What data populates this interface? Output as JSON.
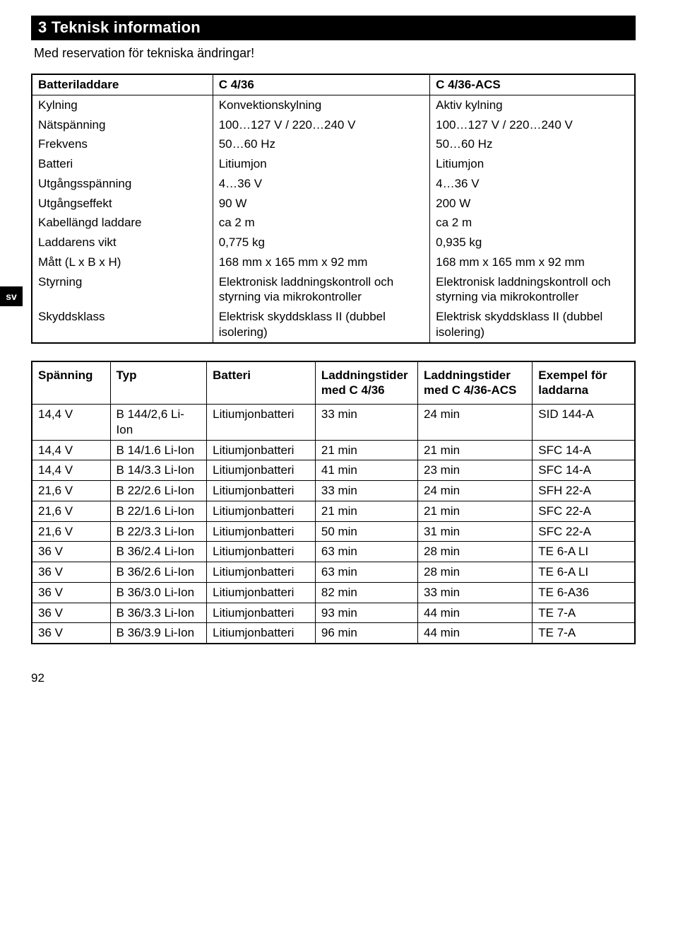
{
  "section": {
    "number": "3",
    "title": "Teknisk information"
  },
  "subtitle": "Med reservation för tekniska ändringar!",
  "lang_tab": "sv",
  "page_number": "92",
  "table1": {
    "headers": [
      "Batteriladdare",
      "C 4/36",
      "C 4/36-ACS"
    ],
    "rows": [
      [
        "Kylning",
        "Konvektionskylning",
        "Aktiv kylning"
      ],
      [
        "Nätspänning",
        "100…127 V / 220…240 V",
        "100…127 V / 220…240 V"
      ],
      [
        "Frekvens",
        "50…60 Hz",
        "50…60 Hz"
      ],
      [
        "Batteri",
        "Litiumjon",
        "Litiumjon"
      ],
      [
        "Utgångsspänning",
        "4…36 V",
        "4…36 V"
      ],
      [
        "Utgångseffekt",
        "90 W",
        "200 W"
      ],
      [
        "Kabellängd laddare",
        "ca 2 m",
        "ca 2 m"
      ],
      [
        "Laddarens vikt",
        "0,775 kg",
        "0,935 kg"
      ],
      [
        "Mått (L x B x H)",
        "168 mm x 165 mm x 92 mm",
        "168 mm x 165 mm x 92 mm"
      ],
      [
        "Styrning",
        "Elektronisk laddningskontroll och styrning via mikrokontroller",
        "Elektronisk laddningskontroll och styrning via mikrokontroller"
      ],
      [
        "Skyddsklass",
        "Elektrisk skyddsklass II (dubbel isolering)",
        "Elektrisk skyddsklass II (dubbel isolering)"
      ]
    ]
  },
  "table2": {
    "headers": [
      "Spänning",
      "Typ",
      "Batteri",
      "Laddnings­tider med C 4/36",
      "Laddnings­tider med C 4/36-ACS",
      "Exempel för laddarna"
    ],
    "rows": [
      [
        "14,4 V",
        "B 144/2,6 Li-Ion",
        "Litiumjonbatteri",
        "33 min",
        "24 min",
        "SID 144-A"
      ],
      [
        "14,4 V",
        "B 14/1.6 Li-Ion",
        "Litiumjonbatteri",
        "21 min",
        "21 min",
        "SFC 14-A"
      ],
      [
        "14,4 V",
        "B 14/3.3 Li-Ion",
        "Litiumjonbatteri",
        "41 min",
        "23 min",
        "SFC 14-A"
      ],
      [
        "21,6 V",
        "B 22/2.6 Li-Ion",
        "Litiumjonbatteri",
        "33 min",
        "24 min",
        "SFH 22-A"
      ],
      [
        "21,6 V",
        "B 22/1.6 Li-Ion",
        "Litiumjonbatteri",
        "21 min",
        "21 min",
        "SFC 22-A"
      ],
      [
        "21,6 V",
        "B 22/3.3 Li-Ion",
        "Litiumjonbatteri",
        "50 min",
        "31 min",
        "SFC 22-A"
      ],
      [
        "36 V",
        "B 36/2.4 Li-Ion",
        "Litiumjonbatteri",
        "63 min",
        "28 min",
        "TE 6-A LI"
      ],
      [
        "36 V",
        "B 36/2.6 Li-Ion",
        "Litiumjonbatteri",
        "63 min",
        "28 min",
        "TE 6-A LI"
      ],
      [
        "36 V",
        "B 36/3.0 Li-Ion",
        "Litiumjonbatteri",
        "82 min",
        "33 min",
        "TE 6-A36"
      ],
      [
        "36 V",
        "B 36/3.3 Li-Ion",
        "Litiumjonbatteri",
        "93 min",
        "44 min",
        "TE 7-A"
      ],
      [
        "36 V",
        "B 36/3.9 Li-Ion",
        "Litiumjonbatteri",
        "96 min",
        "44 min",
        "TE 7-A"
      ]
    ]
  }
}
